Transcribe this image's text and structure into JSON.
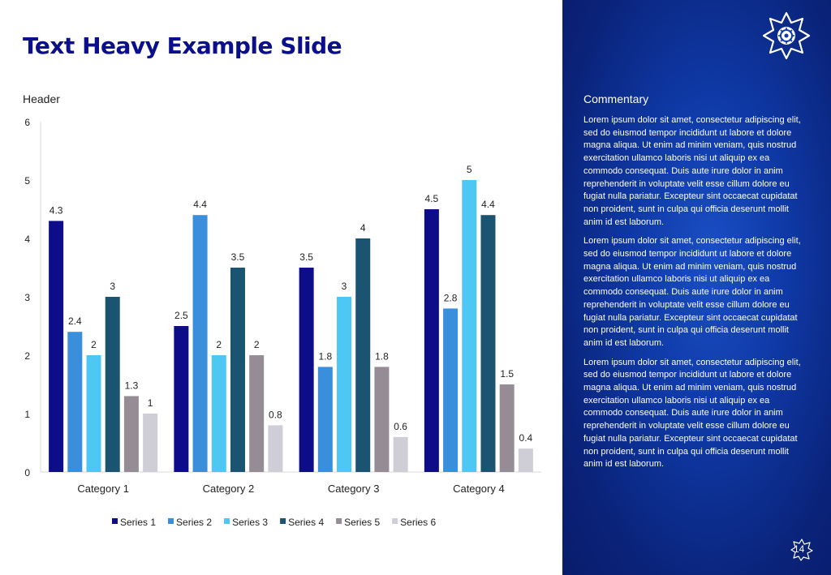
{
  "slide": {
    "title": "Text Heavy Example Slide",
    "chart_header": "Header",
    "page_number": "14"
  },
  "commentary": {
    "title": "Commentary",
    "paragraphs": [
      "Lorem ipsum dolor sit amet, consectetur adipiscing elit, sed do eiusmod tempor incididunt ut labore et dolore magna aliqua. Ut enim ad minim veniam, quis nostrud exercitation ullamco laboris nisi ut aliquip ex ea commodo consequat. Duis aute irure dolor in anim reprehenderit in voluptate velit esse cillum dolore eu fugiat nulla pariatur. Excepteur sint occaecat cupidatat non proident, sunt in culpa qui officia deserunt mollit anim id est laborum.",
      "Lorem ipsum dolor sit amet, consectetur adipiscing elit, sed do eiusmod tempor incididunt ut labore et dolore magna aliqua. Ut enim ad minim veniam, quis nostrud exercitation ullamco laboris nisi ut aliquip ex ea commodo consequat. Duis aute irure dolor in anim reprehenderit in voluptate velit esse cillum dolore eu fugiat nulla pariatur. Excepteur sint occaecat cupidatat non proident, sunt in culpa qui officia deserunt mollit anim id est laborum.",
      "Lorem ipsum dolor sit amet, consectetur adipiscing elit, sed do eiusmod tempor incididunt ut labore et dolore magna aliqua. Ut enim ad minim veniam, quis nostrud exercitation ullamco laboris nisi ut aliquip ex ea commodo consequat. Duis aute irure dolor in anim reprehenderit in voluptate velit esse cillum dolore eu fugiat nulla pariatur. Excepteur sint occaecat cupidatat non proident, sunt in culpa qui officia deserunt mollit anim id est laborum."
    ]
  },
  "chart_data": {
    "type": "bar",
    "title": "",
    "xlabel": "",
    "ylabel": "",
    "ylim": [
      0,
      6
    ],
    "yticks": [
      0,
      1,
      2,
      3,
      4,
      5,
      6
    ],
    "grid": false,
    "legend_position": "bottom",
    "data_labels": true,
    "categories": [
      "Category 1",
      "Category 2",
      "Category 3",
      "Category 4"
    ],
    "series": [
      {
        "name": "Series 1",
        "color": "#0d0d8a",
        "values": [
          4.3,
          2.5,
          3.5,
          4.5
        ]
      },
      {
        "name": "Series 2",
        "color": "#3a8fdc",
        "values": [
          2.4,
          4.4,
          1.8,
          2.8
        ]
      },
      {
        "name": "Series 3",
        "color": "#4dc8f5",
        "values": [
          2,
          2,
          3,
          5
        ]
      },
      {
        "name": "Series 4",
        "color": "#1b5470",
        "values": [
          3,
          3.5,
          4,
          4.4
        ]
      },
      {
        "name": "Series 5",
        "color": "#968c96",
        "values": [
          1.3,
          2,
          1.8,
          1.5
        ]
      },
      {
        "name": "Series 6",
        "color": "#cfcdd6",
        "values": [
          1,
          0.8,
          0.6,
          0.4
        ]
      }
    ]
  }
}
